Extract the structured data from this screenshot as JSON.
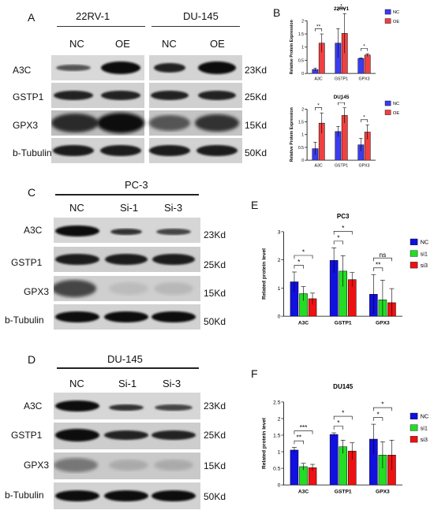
{
  "panelA": {
    "letter": "A",
    "cell_lines": [
      "22RV-1",
      "DU-145"
    ],
    "columns": [
      "NC",
      "OE",
      "NC",
      "OE"
    ],
    "rows": [
      {
        "protein": "A3C",
        "size": "23Kd"
      },
      {
        "protein": "GSTP1",
        "size": "25Kd"
      },
      {
        "protein": "GPX3",
        "size": "15Kd"
      },
      {
        "protein": "b-Tubulin",
        "size": "50Kd"
      }
    ]
  },
  "panelC": {
    "letter": "C",
    "cell_line": "PC-3",
    "columns": [
      "NC",
      "Si-1",
      "Si-3"
    ],
    "rows": [
      {
        "protein": "A3C",
        "size": "23Kd"
      },
      {
        "protein": "GSTP1",
        "size": "25Kd"
      },
      {
        "protein": "GPX3",
        "size": "15Kd"
      },
      {
        "protein": "b-Tubulin",
        "size": "50Kd"
      }
    ]
  },
  "panelD": {
    "letter": "D",
    "cell_line": "DU-145",
    "columns": [
      "NC",
      "Si-1",
      "Si-3"
    ],
    "rows": [
      {
        "protein": "A3C",
        "size": "23Kd"
      },
      {
        "protein": "GSTP1",
        "size": "25Kd"
      },
      {
        "protein": "GPX3",
        "size": "15Kd"
      },
      {
        "protein": "b-Tubulin",
        "size": "50Kd"
      }
    ]
  },
  "panelB": {
    "letter": "B"
  },
  "panelE": {
    "letter": "E"
  },
  "panelF": {
    "letter": "F"
  },
  "chart_data": [
    {
      "id": "b1",
      "type": "bar",
      "title": "22RV1",
      "ylabel": "Relative Protein Expression",
      "ylim": [
        0,
        2.0
      ],
      "yticks": [
        0,
        0.5,
        1.0,
        1.5,
        2.0
      ],
      "categories": [
        "A3C",
        "GSTP1",
        "GPX3"
      ],
      "series": [
        {
          "name": "NC",
          "color": "#3b3bf0",
          "values": [
            0.15,
            1.15,
            0.57
          ],
          "errors": [
            0.05,
            0.55,
            0.02
          ]
        },
        {
          "name": "OE",
          "color": "#f04040",
          "values": [
            1.15,
            1.52,
            0.7
          ],
          "errors": [
            0.35,
            0.75,
            0.05
          ]
        }
      ],
      "sig": [
        "**",
        "*",
        "*"
      ],
      "legend": "top-right"
    },
    {
      "id": "b2",
      "type": "bar",
      "title": "DU145",
      "ylabel": "Relative Protein Expression",
      "ylim": [
        0,
        2.0
      ],
      "yticks": [
        0,
        0.5,
        1.0,
        1.5,
        2.0
      ],
      "categories": [
        "A3C",
        "GSTP1",
        "GPX3"
      ],
      "series": [
        {
          "name": "NC",
          "color": "#3b3bf0",
          "values": [
            0.45,
            1.12,
            0.6
          ],
          "errors": [
            0.25,
            0.2,
            0.25
          ]
        },
        {
          "name": "OE",
          "color": "#f04040",
          "values": [
            1.45,
            1.75,
            1.1
          ],
          "errors": [
            0.4,
            0.3,
            0.28
          ]
        }
      ],
      "sig": [
        "*",
        "*",
        "*"
      ],
      "legend": "top-right"
    },
    {
      "id": "e",
      "type": "bar",
      "title": "PC3",
      "ylabel": "Related protein level",
      "ylim": [
        0,
        3
      ],
      "yticks": [
        0,
        1,
        2,
        3
      ],
      "categories": [
        "A3C",
        "GSTP1",
        "GPX3"
      ],
      "series": [
        {
          "name": "NC",
          "color": "#1010e0",
          "values": [
            1.22,
            1.98,
            0.78
          ],
          "errors": [
            0.35,
            0.45,
            0.7
          ]
        },
        {
          "name": "si1",
          "color": "#22dd22",
          "values": [
            0.8,
            1.6,
            0.58
          ],
          "errors": [
            0.25,
            0.55,
            0.7
          ]
        },
        {
          "name": "si3",
          "color": "#ee1111",
          "values": [
            0.62,
            1.3,
            0.48
          ],
          "errors": [
            0.2,
            0.25,
            0.5
          ]
        }
      ],
      "sig": [
        [
          "*",
          "*"
        ],
        [
          "*",
          "*"
        ],
        [
          "**",
          "ns"
        ]
      ],
      "legend": "right"
    },
    {
      "id": "f",
      "type": "bar",
      "title": "DU145",
      "ylabel": "Related protein level",
      "ylim": [
        0,
        2.5
      ],
      "yticks": [
        0.0,
        0.5,
        1.0,
        1.5,
        2.0,
        2.5
      ],
      "categories": [
        "A3C",
        "GSTP1",
        "GPX3"
      ],
      "series": [
        {
          "name": "NC",
          "color": "#1010e0",
          "values": [
            1.05,
            1.52,
            1.38
          ],
          "errors": [
            0.08,
            0.05,
            0.45
          ]
        },
        {
          "name": "si1",
          "color": "#22dd22",
          "values": [
            0.55,
            1.15,
            0.9
          ],
          "errors": [
            0.1,
            0.2,
            0.4
          ]
        },
        {
          "name": "si3",
          "color": "#ee1111",
          "values": [
            0.52,
            1.02,
            0.9
          ],
          "errors": [
            0.1,
            0.25,
            0.45
          ]
        }
      ],
      "sig": [
        [
          "**",
          "***"
        ],
        [
          "*",
          "*"
        ],
        [
          "*",
          "*"
        ]
      ],
      "legend": "right"
    }
  ]
}
